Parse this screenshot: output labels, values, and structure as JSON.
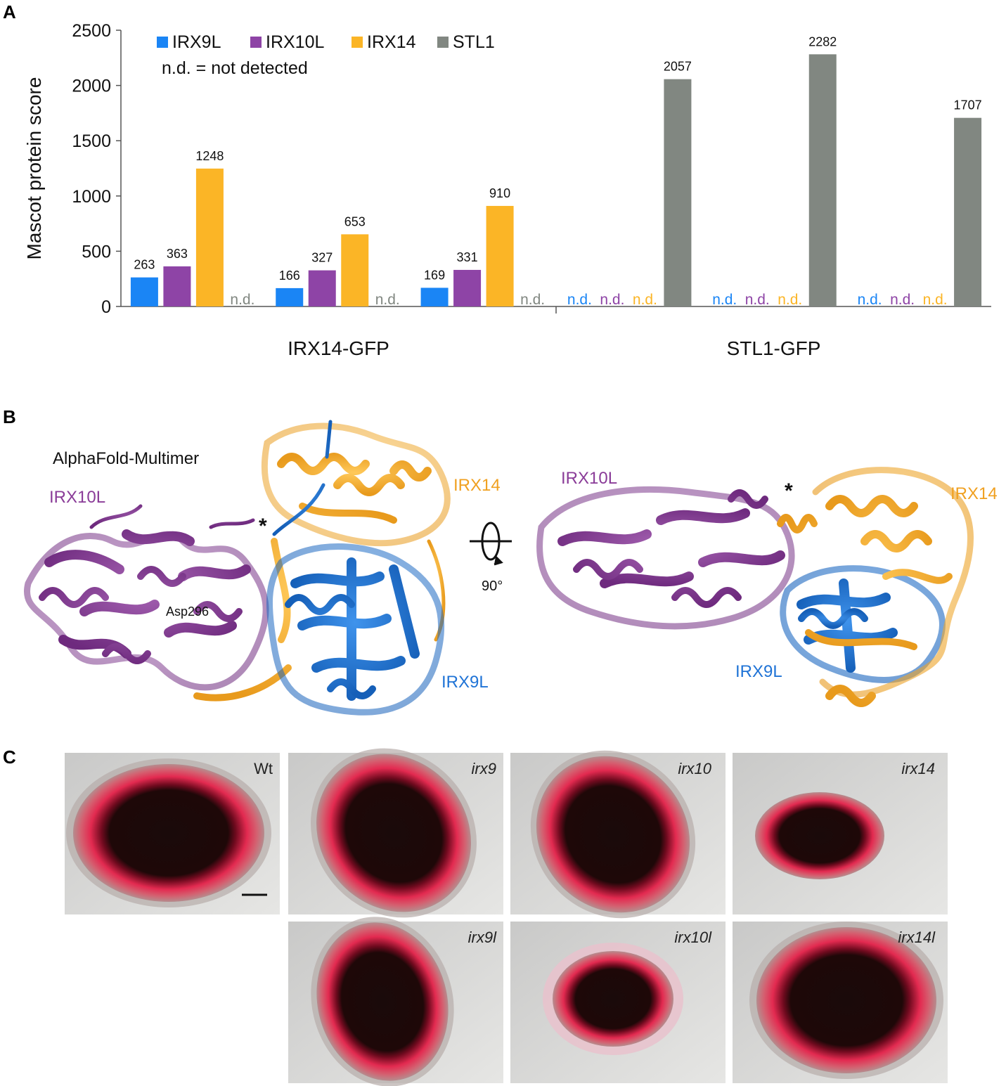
{
  "panel_letters": {
    "a": "A",
    "b": "B",
    "c": "C"
  },
  "chart_data": {
    "type": "bar",
    "ylabel": "Mascot protein score",
    "ylim": [
      0,
      2500
    ],
    "yticks": [
      "0",
      "500",
      "1000",
      "1500",
      "2000",
      "2500"
    ],
    "ytick_values": [
      0,
      500,
      1000,
      1500,
      2000,
      2500
    ],
    "legend": {
      "placement": "top-left",
      "items": [
        "IRX9L",
        "IRX10L",
        "IRX14",
        "STL1"
      ],
      "note": "n.d. = not detected"
    },
    "series_colors": [
      "#1a85f5",
      "#8e44a6",
      "#fbb526",
      "#818781"
    ],
    "groups": [
      {
        "label": "IRX14-GFP",
        "replicates": [
          [
            263,
            363,
            1248,
            null
          ],
          [
            166,
            327,
            653,
            null
          ],
          [
            169,
            331,
            910,
            null
          ]
        ]
      },
      {
        "label": "STL1-GFP",
        "replicates": [
          [
            null,
            null,
            null,
            2057
          ],
          [
            null,
            null,
            null,
            2282
          ],
          [
            null,
            null,
            null,
            1707
          ]
        ]
      }
    ],
    "nd_label": "n.d."
  },
  "structure": {
    "method": "AlphaFold-Multimer",
    "left": {
      "irx10l": "IRX10L",
      "irx14": "IRX14",
      "irx9l": "IRX9L",
      "asp": "Asp296",
      "star": "*"
    },
    "rotation": "90°",
    "right": {
      "irx10l": "IRX10L",
      "irx14": "IRX14",
      "irx9l": "IRX9L",
      "star": "*"
    },
    "colors": {
      "irx10l": "#8a3c98",
      "irx14": "#f6ab2c",
      "irx9l": "#1f73d6"
    }
  },
  "seeds": {
    "labels": [
      "Wt",
      "irx9",
      "irx10",
      "irx14",
      "irx9l",
      "irx10l",
      "irx14l"
    ]
  }
}
